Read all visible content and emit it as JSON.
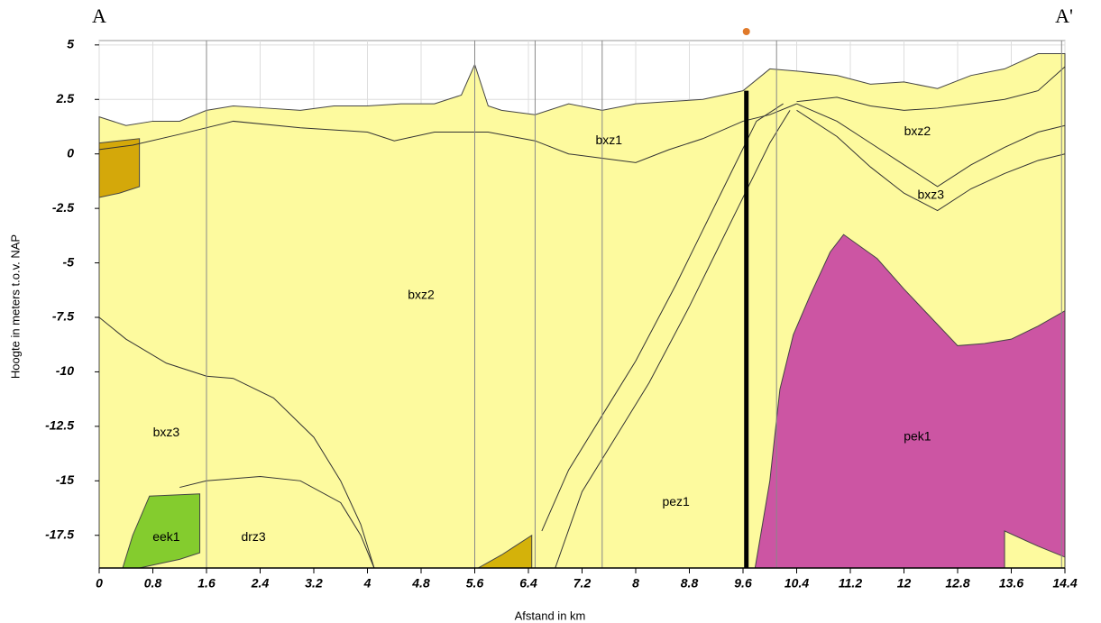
{
  "chart_data": {
    "type": "cross-section",
    "corner_labels": [
      "A",
      "A'"
    ],
    "x_label": "Afstand in km",
    "y_label": "Hoogte in meters t.o.v. NAP",
    "xlim": [
      0,
      14.4
    ],
    "ylim": [
      -19,
      5.2
    ],
    "xticks": [
      0,
      0.8,
      1.6,
      2.4,
      3.2,
      4,
      4.8,
      5.6,
      6.4,
      7.2,
      8,
      8.8,
      9.6,
      10.4,
      11.2,
      12,
      12.8,
      13.6,
      14.4
    ],
    "yticks": [
      5,
      2.5,
      0,
      -2.5,
      -5,
      -7.5,
      -10,
      -12.5,
      -15,
      -17.5
    ],
    "grid": true,
    "layers": [
      {
        "color": "#fdfa9e",
        "x": [
          0,
          0.4,
          0.8,
          1.2,
          1.6,
          2.0,
          2.5,
          3.0,
          3.5,
          4.0,
          4.5,
          5.0,
          5.4,
          5.6,
          5.8,
          6.0,
          6.5,
          7.0,
          7.5,
          8.0,
          8.5,
          9.0,
          9.6,
          10.0,
          10.4,
          11.0,
          11.5,
          12.0,
          12.5,
          13.0,
          13.5,
          14.0,
          14.4,
          14.4,
          0
        ],
        "y": [
          1.7,
          1.3,
          1.5,
          1.5,
          2.0,
          2.2,
          2.1,
          2.0,
          2.2,
          2.2,
          2.3,
          2.3,
          2.7,
          4.1,
          2.2,
          2.0,
          1.8,
          2.3,
          2.0,
          2.3,
          2.4,
          2.5,
          2.9,
          3.9,
          3.8,
          3.6,
          3.2,
          3.3,
          3.0,
          3.6,
          3.9,
          4.6,
          4.6,
          -19,
          -19
        ]
      },
      {
        "color": "#d4a80a",
        "x": [
          0,
          0.6,
          0.6,
          0.3,
          0
        ],
        "y": [
          0.5,
          0.7,
          -1.5,
          -1.8,
          -2.0
        ]
      },
      {
        "color": "#d4b20a",
        "x": [
          5.65,
          6.0,
          6.2,
          6.45,
          6.45
        ],
        "y": [
          -19,
          -18.4,
          -18.0,
          -17.5,
          -19
        ]
      },
      {
        "color": "#84cc2e",
        "x": [
          0.35,
          0.5,
          0.75,
          1.5,
          1.5,
          1.2,
          0.9,
          0.6
        ],
        "y": [
          -19,
          -17.5,
          -15.7,
          -15.6,
          -18.3,
          -18.6,
          -18.8,
          -19
        ]
      },
      {
        "color": "#cc55a3",
        "x": [
          9.78,
          10.0,
          10.15,
          10.35,
          10.6,
          10.9,
          11.1,
          11.6,
          12.0,
          12.4,
          12.8,
          13.2,
          13.6,
          14.0,
          14.4,
          14.4,
          14.0,
          13.5,
          13.5
        ],
        "y": [
          -19,
          -15,
          -10.8,
          -8.3,
          -6.5,
          -4.5,
          -3.7,
          -4.8,
          -6.2,
          -7.5,
          -8.8,
          -8.7,
          -8.5,
          -7.9,
          -7.2,
          -18.5,
          -18.0,
          -17.3,
          -19
        ]
      }
    ],
    "lines": [
      {
        "color": "#333333",
        "x": [
          0,
          0.5,
          1.2,
          2.0,
          3.0,
          4.0,
          4.4,
          5.0,
          5.8,
          6.5,
          7.0,
          7.5,
          8.0,
          8.5,
          9.0,
          9.6,
          10.0,
          10.4
        ],
        "y": [
          0.2,
          0.4,
          0.9,
          1.5,
          1.2,
          1.0,
          0.6,
          1.0,
          1.0,
          0.6,
          0.0,
          -0.2,
          -0.4,
          0.2,
          0.7,
          1.5,
          1.8,
          2.3
        ]
      },
      {
        "color": "#333333",
        "x": [
          10.4,
          11.0,
          11.5,
          12.0,
          12.5,
          13.0,
          13.5,
          14.0,
          14.4
        ],
        "y": [
          2.4,
          2.6,
          2.2,
          2.0,
          2.1,
          2.3,
          2.5,
          2.9,
          4.0
        ]
      },
      {
        "color": "#333333",
        "x": [
          10.4,
          11.0,
          11.5,
          12.0,
          12.5,
          13.0,
          13.5,
          14.0,
          14.4
        ],
        "y": [
          2.3,
          1.5,
          0.5,
          -0.5,
          -1.5,
          -0.5,
          0.3,
          1.0,
          1.3
        ]
      },
      {
        "color": "#333333",
        "x": [
          10.4,
          11.0,
          11.5,
          12.0,
          12.5,
          13.0,
          13.5,
          14.0,
          14.4
        ],
        "y": [
          2.0,
          0.8,
          -0.6,
          -1.8,
          -2.6,
          -1.6,
          -0.9,
          -0.3,
          0
        ]
      },
      {
        "color": "#333333",
        "x": [
          0,
          0.4,
          1.0,
          1.6,
          2.0,
          2.6,
          3.2,
          3.6,
          3.9,
          4.1
        ],
        "y": [
          -7.5,
          -8.5,
          -9.6,
          -10.2,
          -10.3,
          -11.2,
          -13.0,
          -15.0,
          -17.0,
          -19
        ]
      },
      {
        "color": "#333333",
        "x": [
          1.2,
          1.6,
          2.4,
          3.0,
          3.6,
          3.9,
          4.1
        ],
        "y": [
          -15.3,
          -15.0,
          -14.8,
          -15.0,
          -16.0,
          -17.5,
          -19
        ]
      },
      {
        "color": "#333333",
        "x": [
          6.6,
          7.0,
          7.6,
          8.0,
          8.6,
          9.0,
          9.4,
          9.8,
          10.2
        ],
        "y": [
          -17.3,
          -14.5,
          -11.5,
          -9.5,
          -6.0,
          -3.5,
          -1.0,
          1.5,
          2.3
        ]
      },
      {
        "color": "#333333",
        "x": [
          6.8,
          7.2,
          7.8,
          8.2,
          8.8,
          9.2,
          9.6,
          10.0,
          10.3
        ],
        "y": [
          -19,
          -15.5,
          -12.5,
          -10.5,
          -7.0,
          -4.5,
          -2.0,
          0.5,
          2.0
        ]
      }
    ],
    "borehole": {
      "x": 9.65,
      "top": 2.9
    },
    "labels": [
      "bxz2",
      "bxz1",
      "bxz2",
      "bxz3",
      "bxz3",
      "eek1",
      "drz3",
      "pez1",
      "pek1"
    ]
  }
}
